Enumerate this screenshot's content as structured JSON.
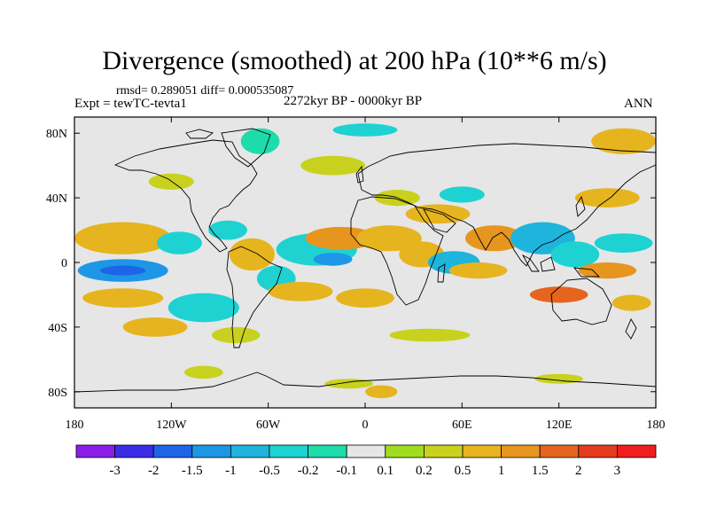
{
  "title": "Divergence (smoothed) at 200 hPa (10**6 m/s)",
  "stats_text": "rmsd= 0.289051 diff= 0.000535087",
  "experiment_text": "Expt = tewTC-tevta1",
  "period_text": "2272kyr BP - 0000kyr BP",
  "season_text": "ANN",
  "chart_data": {
    "type": "heatmap",
    "projection": "cylindrical equidistant",
    "xlim": [
      -180,
      180
    ],
    "ylim": [
      -90,
      90
    ],
    "x_ticks": [
      {
        "value": -180,
        "label": "180"
      },
      {
        "value": -120,
        "label": "120W"
      },
      {
        "value": -60,
        "label": "60W"
      },
      {
        "value": 0,
        "label": "0"
      },
      {
        "value": 60,
        "label": "60E"
      },
      {
        "value": 120,
        "label": "120E"
      },
      {
        "value": 180,
        "label": "180"
      }
    ],
    "y_ticks": [
      {
        "value": 80,
        "label": "80N"
      },
      {
        "value": 40,
        "label": "40N"
      },
      {
        "value": 0,
        "label": "0"
      },
      {
        "value": -40,
        "label": "40S"
      },
      {
        "value": -80,
        "label": "80S"
      }
    ],
    "colorbar": {
      "labels": [
        "-3",
        "-2",
        "-1.5",
        "-1",
        "-0.5",
        "-0.2",
        "-0.1",
        "0.1",
        "0.2",
        "0.5",
        "1",
        "1.5",
        "2",
        "3"
      ],
      "colors": [
        "#8a1ee8",
        "#3c2ce6",
        "#1e64e6",
        "#1e96e6",
        "#1eb4dc",
        "#1ed2d2",
        "#1edcaa",
        "#e6e6e6",
        "#a0dc1e",
        "#c8d21e",
        "#e6b41e",
        "#e6961e",
        "#e6641e",
        "#e63c1e",
        "#f01e1e"
      ]
    },
    "features": [
      {
        "lon": -150,
        "lat": -5,
        "rx": 28,
        "ry": 7,
        "value": -1.5
      },
      {
        "lon": -150,
        "lat": -5,
        "rx": 14,
        "ry": 3,
        "value": -2
      },
      {
        "lon": -150,
        "lat": 15,
        "rx": 30,
        "ry": 10,
        "value": 0.5
      },
      {
        "lon": -150,
        "lat": -22,
        "rx": 25,
        "ry": 6,
        "value": 0.5
      },
      {
        "lon": -115,
        "lat": 12,
        "rx": 14,
        "ry": 7,
        "value": -0.5
      },
      {
        "lon": -100,
        "lat": -28,
        "rx": 22,
        "ry": 9,
        "value": -0.5
      },
      {
        "lon": -130,
        "lat": -40,
        "rx": 20,
        "ry": 6,
        "value": 0.5
      },
      {
        "lon": -70,
        "lat": 5,
        "rx": 14,
        "ry": 10,
        "value": 0.5
      },
      {
        "lon": -55,
        "lat": -10,
        "rx": 12,
        "ry": 8,
        "value": -0.5
      },
      {
        "lon": -85,
        "lat": 20,
        "rx": 12,
        "ry": 6,
        "value": -0.5
      },
      {
        "lon": -30,
        "lat": 8,
        "rx": 25,
        "ry": 10,
        "value": -0.5
      },
      {
        "lon": -20,
        "lat": 2,
        "rx": 12,
        "ry": 4,
        "value": -1.5
      },
      {
        "lon": -15,
        "lat": 15,
        "rx": 22,
        "ry": 7,
        "value": 1
      },
      {
        "lon": 15,
        "lat": 15,
        "rx": 20,
        "ry": 8,
        "value": 0.5
      },
      {
        "lon": -40,
        "lat": -18,
        "rx": 20,
        "ry": 6,
        "value": 0.5
      },
      {
        "lon": 0,
        "lat": -22,
        "rx": 18,
        "ry": 6,
        "value": 0.5
      },
      {
        "lon": 35,
        "lat": 5,
        "rx": 14,
        "ry": 8,
        "value": 0.5
      },
      {
        "lon": 55,
        "lat": 0,
        "rx": 16,
        "ry": 7,
        "value": -1
      },
      {
        "lon": 70,
        "lat": -5,
        "rx": 18,
        "ry": 5,
        "value": 0.5
      },
      {
        "lon": 80,
        "lat": 15,
        "rx": 18,
        "ry": 8,
        "value": 1
      },
      {
        "lon": 110,
        "lat": 15,
        "rx": 20,
        "ry": 10,
        "value": -1
      },
      {
        "lon": 130,
        "lat": 5,
        "rx": 15,
        "ry": 8,
        "value": -0.5
      },
      {
        "lon": 150,
        "lat": -5,
        "rx": 18,
        "ry": 5,
        "value": 1
      },
      {
        "lon": 160,
        "lat": 12,
        "rx": 18,
        "ry": 6,
        "value": -0.5
      },
      {
        "lon": 120,
        "lat": -20,
        "rx": 18,
        "ry": 5,
        "value": 1.5
      },
      {
        "lon": 165,
        "lat": -25,
        "rx": 12,
        "ry": 5,
        "value": 0.5
      },
      {
        "lon": 150,
        "lat": 40,
        "rx": 20,
        "ry": 6,
        "value": 0.5
      },
      {
        "lon": 45,
        "lat": 30,
        "rx": 20,
        "ry": 6,
        "value": 0.5
      },
      {
        "lon": 20,
        "lat": 40,
        "rx": 14,
        "ry": 5,
        "value": 0.2
      },
      {
        "lon": 60,
        "lat": 42,
        "rx": 14,
        "ry": 5,
        "value": -0.5
      },
      {
        "lon": -20,
        "lat": 60,
        "rx": 20,
        "ry": 6,
        "value": 0.2
      },
      {
        "lon": 0,
        "lat": 82,
        "rx": 20,
        "ry": 4,
        "value": -0.5
      },
      {
        "lon": -65,
        "lat": 75,
        "rx": 12,
        "ry": 8,
        "value": -0.2
      },
      {
        "lon": 160,
        "lat": 75,
        "rx": 20,
        "ry": 8,
        "value": 0.5
      },
      {
        "lon": -120,
        "lat": 50,
        "rx": 14,
        "ry": 5,
        "value": 0.2
      },
      {
        "lon": -80,
        "lat": -45,
        "rx": 15,
        "ry": 5,
        "value": 0.2
      },
      {
        "lon": 40,
        "lat": -45,
        "rx": 25,
        "ry": 4,
        "value": 0.2
      },
      {
        "lon": 10,
        "lat": -80,
        "rx": 10,
        "ry": 4,
        "value": 0.5
      },
      {
        "lon": -10,
        "lat": -75,
        "rx": 15,
        "ry": 3,
        "value": 0.2
      },
      {
        "lon": -100,
        "lat": -68,
        "rx": 12,
        "ry": 4,
        "value": 0.2
      },
      {
        "lon": 120,
        "lat": -72,
        "rx": 15,
        "ry": 3,
        "value": 0.2
      }
    ]
  }
}
